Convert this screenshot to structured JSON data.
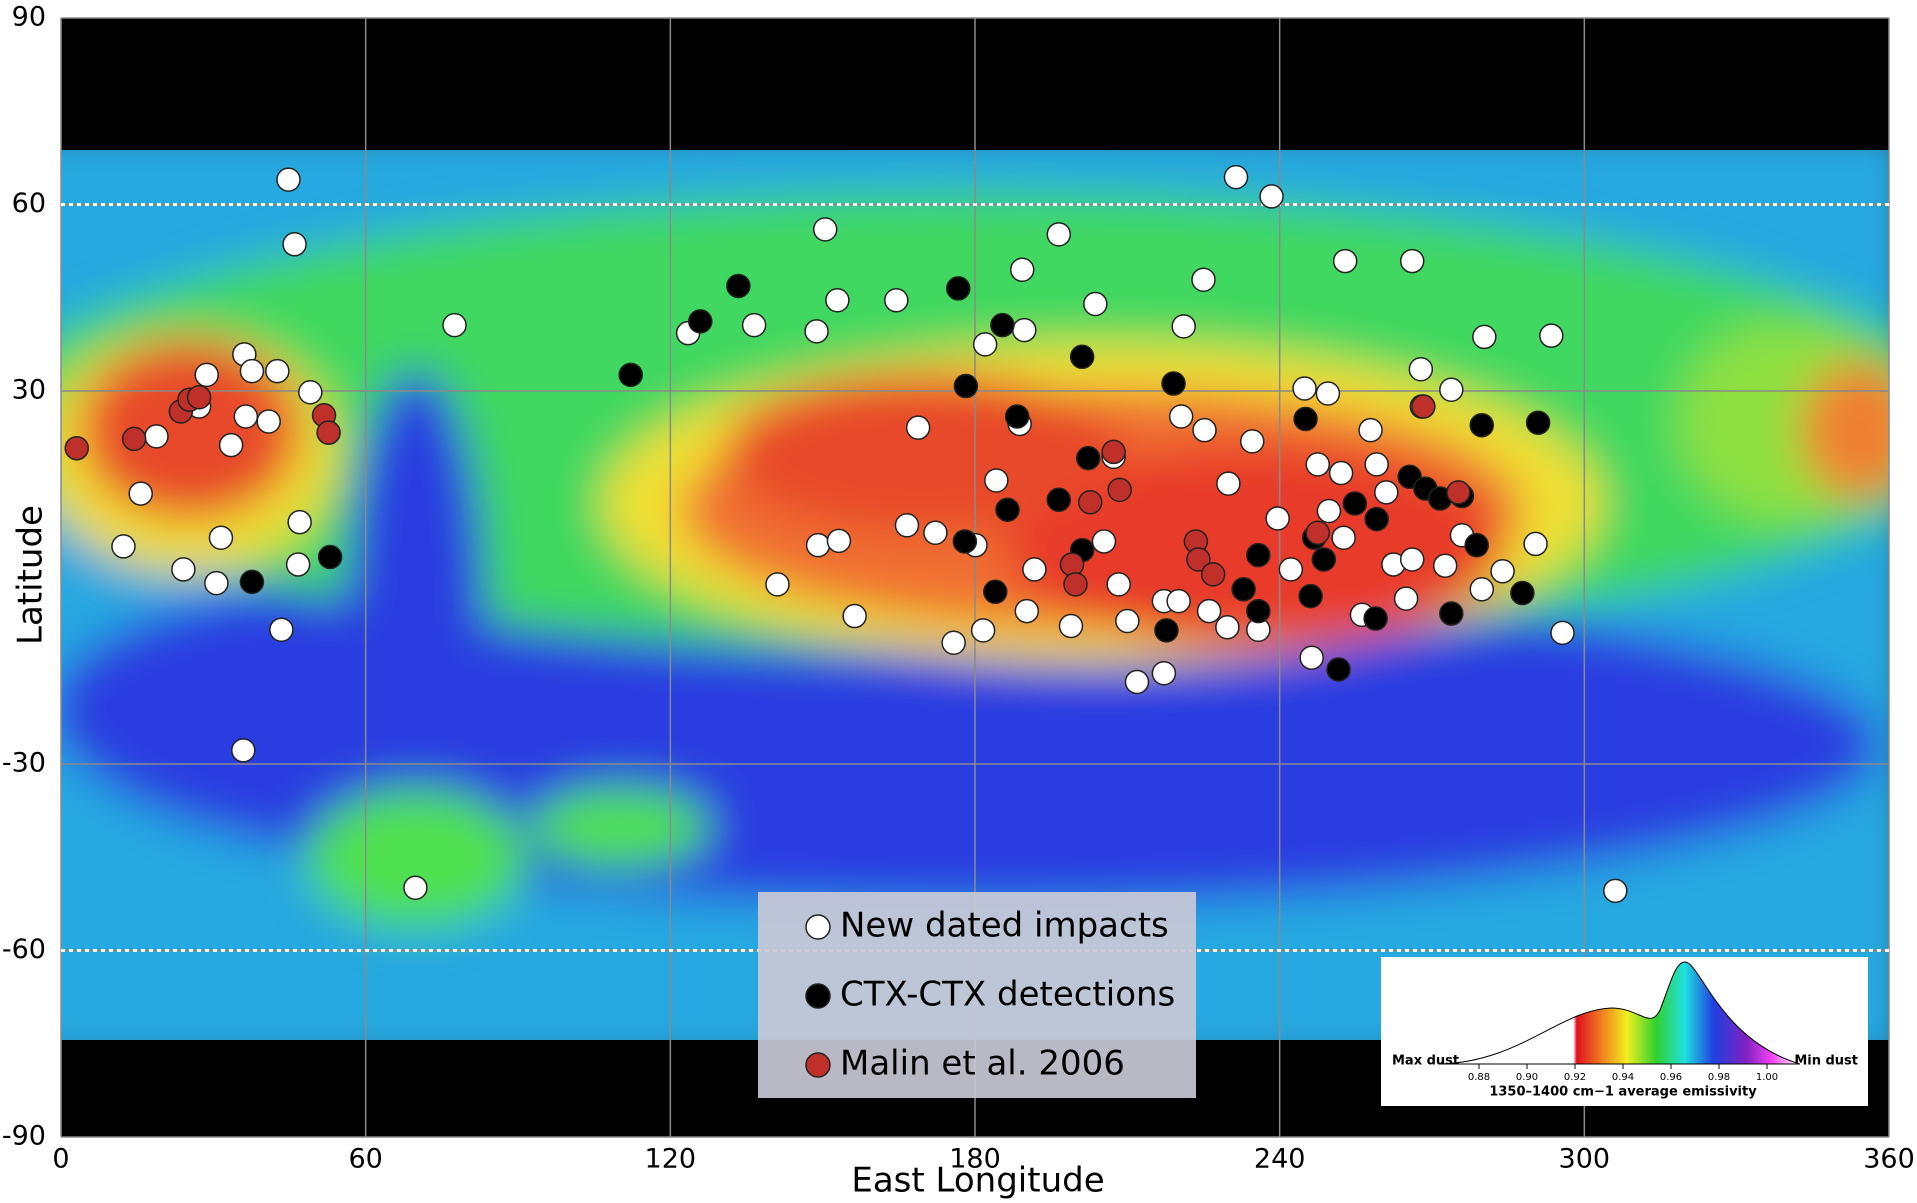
{
  "chart_data": {
    "type": "scatter",
    "x_label": "East Longitude",
    "y_label": "Latitude",
    "xlim": [
      0,
      360
    ],
    "ylim": [
      -90,
      90
    ],
    "xticks": [
      0,
      60,
      120,
      180,
      240,
      300,
      360
    ],
    "yticks": [
      -90,
      -60,
      -30,
      30,
      60,
      90
    ],
    "grid": true,
    "hlines": [
      60,
      -60
    ],
    "series": [
      {
        "name": "New dated impacts",
        "color": "#ffffff",
        "x": [
          44.8,
          231.4,
          238.4,
          46.0,
          150.5,
          196.5,
          77.5,
          252.9,
          266.1,
          225.0,
          152.9,
          164.5,
          189.3,
          203.7,
          182.0,
          189.7,
          123.5,
          136.5,
          148.8,
          221.1,
          280.3,
          293.5,
          36.1,
          28.7,
          37.6,
          42.6,
          49.1,
          27.2,
          36.4,
          40.9,
          33.5,
          18.8,
          15.7,
          168.8,
          188.8,
          220.6,
          225.2,
          234.6,
          247.5,
          268.0,
          267.8,
          273.8,
          229.9,
          252.1,
          259.1,
          261.0,
          207.3,
          184.2,
          244.9,
          249.5,
          257.9,
          12.3,
          31.5,
          47.0,
          46.7,
          30.6,
          24.1,
          43.4,
          149.1,
          153.2,
          166.6,
          172.2,
          180.1,
          141.1,
          156.3,
          175.8,
          181.6,
          191.7,
          190.2,
          198.9,
          205.4,
          208.3,
          210.0,
          217.2,
          220.1,
          211.9,
          217.2,
          226.1,
          229.7,
          235.8,
          239.6,
          242.2,
          246.3,
          249.7,
          252.6,
          256.2,
          262.4,
          264.9,
          266.1,
          272.6,
          275.9,
          279.8,
          283.9,
          290.4,
          295.7,
          35.9,
          69.8,
          306.1
        ],
        "y": [
          64.0,
          64.4,
          61.3,
          53.6,
          56.0,
          55.2,
          40.6,
          50.9,
          50.9,
          47.9,
          44.6,
          44.6,
          49.5,
          44.0,
          37.5,
          39.8,
          39.3,
          40.6,
          39.6,
          40.4,
          38.7,
          38.9,
          35.9,
          32.6,
          33.2,
          33.2,
          29.8,
          27.5,
          25.9,
          25.1,
          21.3,
          22.7,
          13.5,
          24.1,
          24.7,
          25.9,
          23.7,
          21.9,
          18.2,
          27.5,
          33.5,
          30.2,
          15.1,
          16.8,
          18.2,
          13.7,
          19.4,
          15.6,
          30.4,
          29.6,
          23.7,
          5.0,
          6.4,
          8.9,
          2.1,
          -0.9,
          1.3,
          -8.4,
          5.2,
          5.9,
          8.4,
          7.2,
          5.2,
          -1.1,
          -6.2,
          -10.5,
          -8.5,
          1.3,
          -5.4,
          -7.8,
          5.8,
          -1.1,
          -7.0,
          -3.8,
          -3.8,
          -16.8,
          -15.4,
          -5.4,
          -8.0,
          -8.4,
          9.5,
          1.3,
          -12.9,
          10.7,
          6.4,
          -6.0,
          2.1,
          -3.4,
          2.9,
          1.9,
          6.8,
          -1.9,
          1.0,
          5.4,
          -8.9,
          -27.8,
          -49.9,
          -50.4
        ]
      },
      {
        "name": "CTX-CTX detections",
        "color": "#000000",
        "x": [
          133.4,
          125.9,
          112.2,
          176.7,
          185.4,
          201.1,
          178.2,
          219.1,
          188.3,
          202.3,
          196.5,
          186.4,
          178.0,
          201.1,
          184.0,
          217.7,
          235.8,
          232.9,
          235.8,
          245.1,
          254.8,
          259.1,
          265.6,
          268.7,
          271.6,
          275.9,
          279.8,
          290.9,
          278.8,
          287.8,
          273.8,
          246.8,
          248.7,
          246.1,
          258.9,
          251.6,
          53.0,
          37.6
        ],
        "y": [
          46.9,
          41.2,
          32.6,
          46.5,
          40.6,
          35.5,
          30.8,
          31.2,
          25.9,
          19.2,
          12.5,
          10.9,
          5.8,
          4.4,
          -2.3,
          -8.5,
          3.6,
          -1.9,
          -5.4,
          25.5,
          11.9,
          9.4,
          16.2,
          14.3,
          12.7,
          13.1,
          24.5,
          24.9,
          5.2,
          -2.5,
          -5.8,
          6.4,
          2.9,
          -3.0,
          -6.6,
          -14.8,
          3.3,
          -0.7
        ]
      },
      {
        "name": "Malin et al. 2006",
        "color": "#c0302a",
        "x": [
          3.1,
          14.4,
          23.6,
          25.3,
          27.2,
          51.8,
          52.7,
          207.3,
          202.7,
          208.5,
          223.5,
          224.0,
          226.9,
          199.1,
          199.8,
          247.5,
          268.3,
          275.2
        ],
        "y": [
          20.8,
          22.3,
          26.7,
          28.6,
          29.0,
          26.1,
          23.3,
          20.2,
          12.1,
          14.1,
          5.8,
          2.9,
          0.5,
          2.1,
          -1.1,
          7.2,
          27.5,
          13.7
        ]
      }
    ],
    "colorbar": {
      "left_label": "Max dust",
      "right_label": "Min dust",
      "title": "1350–1400 cm−1 average emissivity",
      "ticks": [
        0.88,
        {
          "value": 0.9,
          "label": "0.90"
        },
        0.92,
        0.94,
        0.96,
        0.98,
        {
          "value": 1,
          "label": "1.00"
        }
      ]
    }
  }
}
